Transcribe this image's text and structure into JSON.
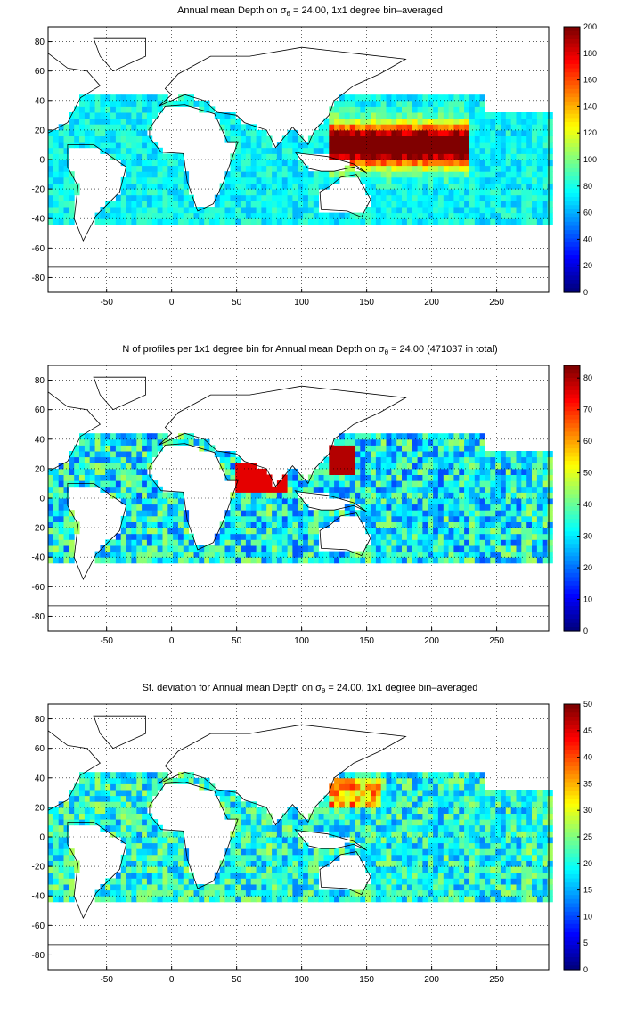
{
  "chart_data": [
    {
      "type": "heatmap",
      "title_pre": "Annual mean Depth on ",
      "title_sym": "σ",
      "title_sub": "θ",
      "title_post": " = 24.00, 1x1 degree bin–averaged",
      "x_ticks": [
        -50,
        0,
        50,
        100,
        150,
        200,
        250
      ],
      "y_ticks": [
        80,
        60,
        40,
        20,
        0,
        -20,
        -40,
        -60,
        -80
      ],
      "xlim": [
        -95,
        290
      ],
      "ylim": [
        -90,
        90
      ],
      "grid": true,
      "colormap": "jet",
      "colorbar_ticks": [
        200,
        180,
        160,
        140,
        120,
        100,
        80,
        60,
        40,
        20,
        0
      ],
      "clim": [
        0,
        200
      ]
    },
    {
      "type": "heatmap",
      "title_pre": "N of profiles per 1x1 degree bin for Annual mean Depth on ",
      "title_sym": "σ",
      "title_sub": "θ",
      "title_post": " = 24.00 (471037 in total)",
      "x_ticks": [
        -50,
        0,
        50,
        100,
        150,
        200,
        250
      ],
      "y_ticks": [
        80,
        60,
        40,
        20,
        0,
        -20,
        -40,
        -60,
        -80
      ],
      "xlim": [
        -95,
        290
      ],
      "ylim": [
        -90,
        90
      ],
      "grid": true,
      "colormap": "jet",
      "colorbar_ticks": [
        80,
        70,
        60,
        50,
        40,
        30,
        20,
        10,
        0
      ],
      "clim": [
        0,
        84
      ]
    },
    {
      "type": "heatmap",
      "title_pre": "St. deviation for Annual mean Depth on ",
      "title_sym": "σ",
      "title_sub": "θ",
      "title_post": " = 24.00, 1x1 degree bin–averaged",
      "x_ticks": [
        -50,
        0,
        50,
        100,
        150,
        200,
        250
      ],
      "y_ticks": [
        80,
        60,
        40,
        20,
        0,
        -20,
        -40,
        -60,
        -80
      ],
      "xlim": [
        -95,
        290
      ],
      "ylim": [
        -90,
        90
      ],
      "grid": true,
      "colormap": "jet",
      "colorbar_ticks": [
        50,
        45,
        40,
        35,
        30,
        25,
        20,
        15,
        10,
        5,
        0
      ],
      "clim": [
        0,
        50
      ]
    }
  ]
}
